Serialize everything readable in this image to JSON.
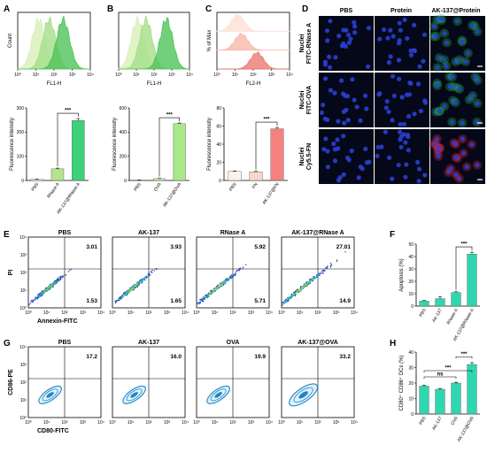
{
  "panel_labels": {
    "A": "A",
    "B": "B",
    "C": "C",
    "D": "D",
    "E": "E",
    "F": "F",
    "G": "G",
    "H": "H"
  },
  "hist": {
    "A": {
      "ylabel": "Count",
      "xlabel": "FL1-H",
      "colors": [
        "#d9f0b8",
        "#a5de8a",
        "#4fc35a"
      ],
      "peaks": [
        0.2,
        0.32,
        0.48
      ]
    },
    "B": {
      "ylabel": "",
      "xlabel": "FL1-H",
      "colors": [
        "#d9f0b8",
        "#a5de8a",
        "#4fc35a"
      ],
      "peaks": [
        0.18,
        0.28,
        0.52
      ]
    },
    "C": {
      "ylabel": "% of Max",
      "xlabel": "FL2-H",
      "colors": [
        "#fde0d3",
        "#f7b8a8",
        "#ec7a72"
      ],
      "peaks": [
        0.2,
        0.24,
        0.42
      ]
    }
  },
  "hist_ticks": [
    "10⁰",
    "10¹",
    "10²",
    "10³",
    "10⁴"
  ],
  "chart_data": [
    {
      "type": "bar",
      "id": "A-bar",
      "ylabel": "Fluorescence intensity",
      "categories": [
        "PBS",
        "RNase A",
        "AK-137@RNase A"
      ],
      "values": [
        5,
        48,
        248
      ],
      "errors": [
        1,
        3,
        8
      ],
      "ylim": [
        0,
        300
      ],
      "yticks": [
        0,
        100,
        200,
        300
      ],
      "sig": "***",
      "colors": [
        "#f2fae8",
        "#b5e38e",
        "#3fd07a"
      ]
    },
    {
      "type": "bar",
      "id": "B-bar",
      "ylabel": "Fluorescence intensity",
      "categories": [
        "PBS",
        "OVA",
        "AK-137@OVA"
      ],
      "values": [
        3,
        15,
        470
      ],
      "errors": [
        1,
        2,
        5
      ],
      "ylim": [
        0,
        600
      ],
      "yticks": [
        0,
        200,
        400,
        600
      ],
      "sig": "***",
      "colors": [
        "#f2fae8",
        "#cdeeb4",
        "#a9e889"
      ]
    },
    {
      "type": "bar",
      "id": "C-bar",
      "ylabel": "Fluorescence intensity",
      "categories": [
        "PBS",
        "FN",
        "AK-137@FN"
      ],
      "values": [
        10,
        9.5,
        57
      ],
      "errors": [
        0.5,
        0.5,
        1.5
      ],
      "ylim": [
        0,
        80
      ],
      "yticks": [
        0,
        20,
        40,
        60,
        80
      ],
      "sig": "***",
      "colors": [
        "#fdf0e8",
        "#fbd5cc",
        "#f48080"
      ]
    },
    {
      "type": "bar",
      "id": "F-bar",
      "ylabel": "Apoptosis (%)",
      "categories": [
        "PBS",
        "AK-137",
        "RNase A",
        "AK-137@RNase A"
      ],
      "values": [
        4,
        6,
        11,
        42
      ],
      "errors": [
        0.5,
        1.5,
        0.6,
        1.5
      ],
      "ylim": [
        0,
        50
      ],
      "yticks": [
        0,
        10,
        20,
        30,
        40,
        50
      ],
      "sig": "***",
      "colors": [
        "#2fd7b0",
        "#2fd7b0",
        "#2fd7b0",
        "#2fd7b0"
      ]
    },
    {
      "type": "bar",
      "id": "H-bar",
      "ylabel": "CD80⁺ CD86⁺ DCs (%)",
      "categories": [
        "PBS",
        "AK-137",
        "OVA",
        "AK-137@OVA"
      ],
      "values": [
        18,
        16,
        20,
        32
      ],
      "errors": [
        0.6,
        0.5,
        0.5,
        1.2
      ],
      "ylim": [
        0,
        40
      ],
      "yticks": [
        0,
        10,
        20,
        30,
        40
      ],
      "sigs": [
        "ns",
        "***",
        "***"
      ],
      "colors": [
        "#2fd7b0",
        "#2fd7b0",
        "#2fd7b0",
        "#2fd7b0"
      ]
    }
  ],
  "micro": {
    "cols": [
      "PBS",
      "Protein",
      "AK-137@Protein"
    ],
    "rows": [
      {
        "nuc": "Nuclei",
        "label": "FITC-RNase A",
        "color": "#1fae3a"
      },
      {
        "nuc": "Nuclei",
        "label": "FITC-OVA",
        "color": "#1fae3a"
      },
      {
        "nuc": "Nuclei",
        "label": "Cy5.5-FN",
        "color": "#e0202a"
      }
    ]
  },
  "flowE": {
    "titles": [
      "PBS",
      "AK-137",
      "RNase A",
      "AK-137@RNase A"
    ],
    "ur": [
      "3.01",
      "3.93",
      "5.92",
      "27.01"
    ],
    "lr": [
      "1.53",
      "1.65",
      "5.71",
      "14.9"
    ],
    "ylabel": "PI",
    "xlabel": "Annexin-FITC",
    "ticks": [
      "10⁰",
      "10¹",
      "10²",
      "10³",
      "10⁴"
    ]
  },
  "flowG": {
    "titles": [
      "PBS",
      "AK-137",
      "OVA",
      "AK-137@OVA"
    ],
    "ur": [
      "17.2",
      "16.0",
      "19.9",
      "33.2"
    ],
    "ylabel": "CD86-PE",
    "xlabel": "CD80-FITC",
    "ticks": [
      "10⁰",
      "10¹",
      "10²",
      "10³",
      "10⁴"
    ]
  }
}
